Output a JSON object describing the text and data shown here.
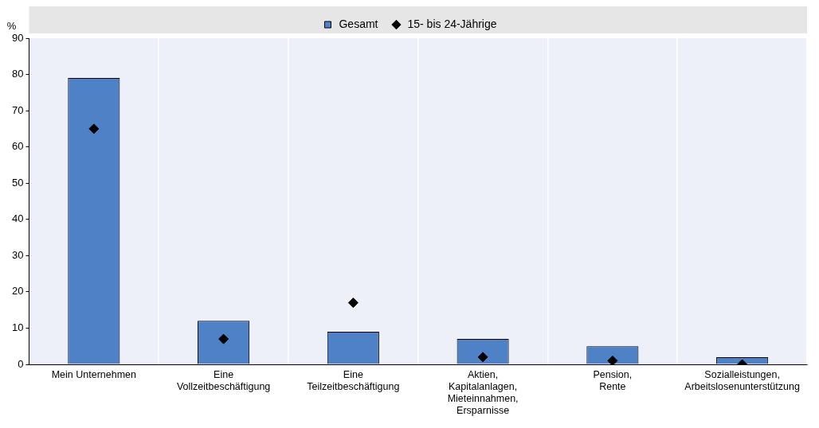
{
  "chart_data": {
    "type": "bar",
    "ylabel": "%",
    "categories": [
      "Mein Unternehmen",
      "Eine Vollzeitbeschäftigung",
      "Eine Teilzeitbeschäftigung",
      "Aktien, Kapitalanlagen, Mieteinnahmen, Ersparnisse",
      "Pension, Rente",
      "Sozialleistungen, Arbeitslosenunterstützung"
    ],
    "series": [
      {
        "name": "Gesamt",
        "color": "#4f81c7",
        "values": [
          79,
          12,
          9,
          7,
          5,
          2
        ]
      },
      {
        "name": "15- bis 24-Jährige",
        "type": "scatter",
        "color": "#000000",
        "marker": "diamond",
        "x": [
          "Mein Unternehmen",
          "Eine Vollzeitbeschäftigung",
          "Eine Teilzeitbeschäftigung",
          "Aktien, Kapitalanlagen, Mieteinnahmen, Ersparnisse",
          "Pension, Rente",
          "Sozialleistungen, Arbeitslosenunterstützung"
        ],
        "values": [
          65,
          7,
          17,
          2,
          1,
          0
        ]
      }
    ],
    "ylim": [
      0,
      90
    ],
    "yticks": [
      0,
      10,
      20,
      30,
      40,
      50,
      60,
      70,
      80,
      90
    ],
    "grid": "x",
    "legend": "top"
  }
}
